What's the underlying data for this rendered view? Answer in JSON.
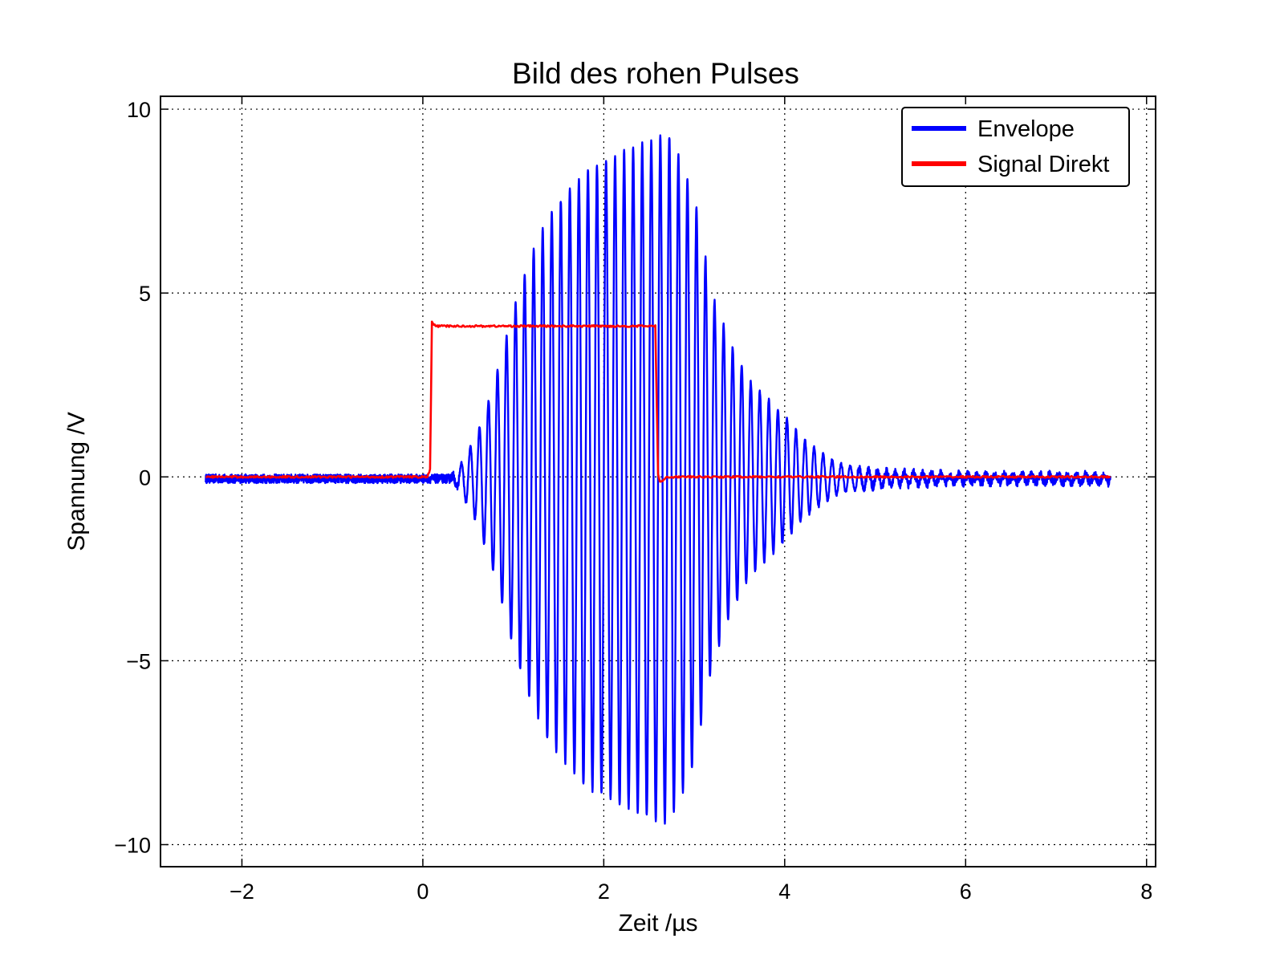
{
  "chart_data": {
    "type": "line",
    "title": "Bild des rohen Pulses",
    "xlabel": "Zeit /µs",
    "ylabel": "Spannung /V",
    "xlim": [
      -2.9,
      8.1
    ],
    "ylim": [
      -10.6,
      10.35
    ],
    "x_ticks": [
      -2,
      0,
      2,
      4,
      6,
      8
    ],
    "y_ticks": [
      -10,
      -5,
      0,
      5,
      10
    ],
    "x_tick_labels": [
      "−2",
      "0",
      "2",
      "4",
      "6",
      "8"
    ],
    "y_tick_labels": [
      "−10",
      "−5",
      "0",
      "5",
      "10"
    ],
    "grid": true,
    "legend_position": "top-right",
    "series": [
      {
        "name": "Envelope",
        "color": "#0000ff",
        "kind": "oscillating-burst",
        "x_range": [
          -2.4,
          7.6
        ],
        "carrier_period_us": 0.1,
        "baseline_noise": 0.15,
        "envelope": {
          "x": [
            -2.4,
            0.3,
            0.4,
            0.6,
            0.8,
            1.0,
            1.2,
            1.4,
            1.6,
            1.8,
            2.0,
            2.2,
            2.4,
            2.6,
            2.7,
            2.8,
            3.0,
            3.2,
            3.4,
            3.6,
            3.8,
            4.0,
            4.2,
            4.4,
            4.6,
            5.0,
            5.5,
            6.0,
            7.6
          ],
          "amplitude": [
            0.0,
            0.0,
            0.3,
            1.2,
            2.7,
            4.6,
            6.1,
            7.2,
            7.8,
            8.4,
            8.6,
            8.9,
            9.1,
            9.3,
            9.4,
            9.0,
            7.7,
            5.0,
            3.7,
            2.7,
            2.2,
            1.7,
            1.1,
            0.7,
            0.4,
            0.2,
            0.15,
            0.1,
            0.1
          ]
        }
      },
      {
        "name": "Signal Direkt",
        "color": "#ff0000",
        "x": [
          -2.4,
          0.05,
          0.08,
          0.1,
          0.14,
          0.3,
          1.0,
          2.0,
          2.55,
          2.57,
          2.6,
          2.62,
          2.7,
          3.0,
          5.0,
          7.6
        ],
        "y": [
          0.0,
          0.0,
          0.2,
          4.2,
          4.1,
          4.1,
          4.1,
          4.1,
          4.1,
          4.1,
          0.1,
          -0.15,
          0.0,
          0.0,
          0.0,
          0.0
        ]
      }
    ]
  }
}
